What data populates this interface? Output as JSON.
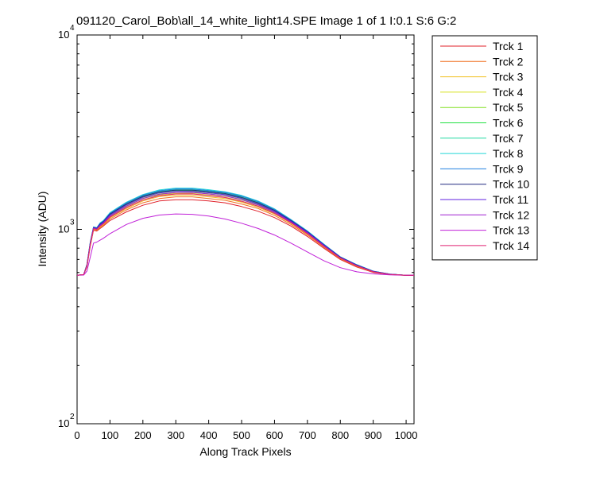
{
  "chart_data": {
    "type": "line",
    "title": "091120_Carol_Bob\\all_14_white_light14.SPE  Image 1 of 1  I:0.1  S:6  G:2",
    "xlabel": "Along Track Pixels",
    "ylabel": "Intensity (ADU)",
    "xlim": [
      0,
      1024
    ],
    "ylim": [
      100,
      10000
    ],
    "yscale": "log",
    "x_ticks": [
      0,
      100,
      200,
      300,
      400,
      500,
      600,
      700,
      800,
      900,
      1000
    ],
    "y_ticks": [
      {
        "base": "10",
        "exp": "2",
        "value": 100
      },
      {
        "base": "10",
        "exp": "3",
        "value": 1000
      },
      {
        "base": "10",
        "exp": "4",
        "value": 10000
      }
    ],
    "grid": false,
    "legend_position": "outside-right",
    "x": [
      0,
      20,
      30,
      40,
      50,
      60,
      70,
      80,
      100,
      150,
      200,
      250,
      300,
      350,
      400,
      450,
      500,
      550,
      600,
      650,
      700,
      750,
      800,
      850,
      900,
      950,
      1000,
      1024
    ],
    "series": [
      {
        "name": "Trck 1",
        "color": "#e0202a",
        "values": [
          580,
          585,
          640,
          820,
          990,
          980,
          1010,
          1040,
          1110,
          1230,
          1330,
          1400,
          1420,
          1420,
          1400,
          1370,
          1310,
          1240,
          1150,
          1040,
          920,
          800,
          700,
          640,
          600,
          585,
          580,
          580
        ]
      },
      {
        "name": "Trck 2",
        "color": "#f07020",
        "values": [
          580,
          585,
          645,
          830,
          1000,
          990,
          1020,
          1050,
          1130,
          1260,
          1370,
          1440,
          1470,
          1470,
          1440,
          1410,
          1350,
          1280,
          1180,
          1060,
          935,
          810,
          705,
          645,
          603,
          586,
          580,
          580
        ]
      },
      {
        "name": "Trck 3",
        "color": "#f0c020",
        "values": [
          580,
          585,
          650,
          835,
          1005,
          995,
          1030,
          1060,
          1145,
          1280,
          1400,
          1475,
          1500,
          1500,
          1470,
          1440,
          1380,
          1300,
          1200,
          1075,
          945,
          815,
          710,
          648,
          605,
          587,
          580,
          580
        ]
      },
      {
        "name": "Trck 4",
        "color": "#d8e020",
        "values": [
          580,
          585,
          650,
          840,
          1010,
          1000,
          1040,
          1070,
          1160,
          1300,
          1420,
          1500,
          1530,
          1530,
          1500,
          1465,
          1400,
          1320,
          1215,
          1085,
          952,
          820,
          712,
          650,
          606,
          587,
          580,
          580
        ]
      },
      {
        "name": "Trck 5",
        "color": "#80e020",
        "values": [
          580,
          585,
          655,
          845,
          1015,
          1005,
          1050,
          1080,
          1175,
          1320,
          1445,
          1520,
          1550,
          1555,
          1525,
          1490,
          1425,
          1340,
          1230,
          1095,
          960,
          825,
          715,
          652,
          607,
          588,
          580,
          580
        ]
      },
      {
        "name": "Trck 6",
        "color": "#20e040",
        "values": [
          580,
          585,
          655,
          850,
          1020,
          1010,
          1060,
          1090,
          1190,
          1340,
          1470,
          1545,
          1580,
          1580,
          1550,
          1515,
          1450,
          1360,
          1245,
          1105,
          968,
          830,
          718,
          654,
          608,
          588,
          580,
          580
        ]
      },
      {
        "name": "Trck 7",
        "color": "#20d8a0",
        "values": [
          580,
          585,
          660,
          855,
          1025,
          1015,
          1070,
          1100,
          1205,
          1360,
          1490,
          1570,
          1605,
          1605,
          1575,
          1540,
          1475,
          1380,
          1260,
          1115,
          975,
          835,
          720,
          656,
          609,
          589,
          580,
          580
        ]
      },
      {
        "name": "Trck 8",
        "color": "#20d8d8",
        "values": [
          580,
          585,
          660,
          860,
          1030,
          1020,
          1080,
          1110,
          1220,
          1380,
          1510,
          1595,
          1630,
          1630,
          1600,
          1560,
          1495,
          1400,
          1275,
          1125,
          982,
          840,
          722,
          658,
          610,
          589,
          580,
          580
        ]
      },
      {
        "name": "Trck 9",
        "color": "#2080e0",
        "values": [
          580,
          585,
          658,
          858,
          1028,
          1018,
          1075,
          1105,
          1210,
          1370,
          1500,
          1580,
          1615,
          1615,
          1585,
          1550,
          1485,
          1390,
          1268,
          1120,
          978,
          838,
          721,
          657,
          609,
          589,
          580,
          580
        ]
      },
      {
        "name": "Trck 10",
        "color": "#202880",
        "values": [
          580,
          585,
          656,
          852,
          1022,
          1012,
          1065,
          1095,
          1198,
          1350,
          1480,
          1558,
          1592,
          1592,
          1562,
          1528,
          1462,
          1370,
          1252,
          1110,
          972,
          832,
          719,
          655,
          608,
          588,
          580,
          580
        ]
      },
      {
        "name": "Trck 11",
        "color": "#6020e0",
        "values": [
          580,
          585,
          654,
          848,
          1018,
          1008,
          1055,
          1085,
          1185,
          1335,
          1462,
          1540,
          1572,
          1572,
          1542,
          1508,
          1442,
          1352,
          1240,
          1100,
          965,
          828,
          716,
          653,
          607,
          588,
          580,
          580
        ]
      },
      {
        "name": "Trck 12",
        "color": "#a020d0",
        "values": [
          580,
          585,
          652,
          842,
          1012,
          1002,
          1045,
          1075,
          1170,
          1315,
          1440,
          1515,
          1545,
          1548,
          1520,
          1485,
          1420,
          1335,
          1225,
          1090,
          958,
          823,
          713,
          651,
          606,
          587,
          580,
          580
        ]
      },
      {
        "name": "Trck 13",
        "color": "#c020d8",
        "values": [
          580,
          582,
          610,
          720,
          850,
          860,
          880,
          900,
          950,
          1060,
          1140,
          1185,
          1200,
          1195,
          1170,
          1130,
          1075,
          1010,
          935,
          850,
          765,
          690,
          635,
          605,
          590,
          583,
          580,
          580
        ]
      },
      {
        "name": "Trck 14",
        "color": "#e02070",
        "values": [
          580,
          585,
          650,
          838,
          1008,
          998,
          1038,
          1068,
          1155,
          1295,
          1415,
          1490,
          1520,
          1522,
          1492,
          1458,
          1395,
          1315,
          1210,
          1082,
          950,
          818,
          711,
          649,
          605,
          587,
          580,
          580
        ]
      }
    ]
  }
}
